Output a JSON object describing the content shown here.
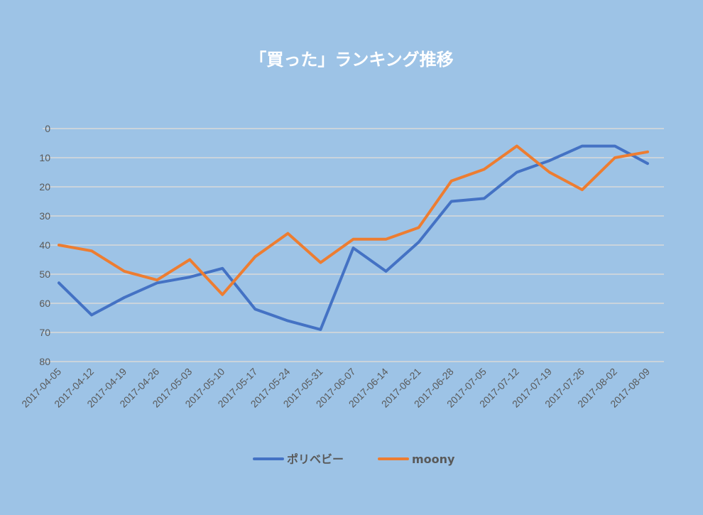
{
  "chart_data": {
    "type": "line",
    "title": "「買った」ランキング推移",
    "xlabel": "",
    "ylabel": "",
    "ylim": [
      0,
      80
    ],
    "y_reversed": true,
    "y_ticks": [
      0,
      10,
      20,
      30,
      40,
      50,
      60,
      70,
      80
    ],
    "grid": true,
    "legend_position": "bottom",
    "categories": [
      "2017-04-05",
      "2017-04-12",
      "2017-04-19",
      "2017-04-26",
      "2017-05-03",
      "2017-05-10",
      "2017-05-17",
      "2017-05-24",
      "2017-05-31",
      "2017-06-07",
      "2017-06-14",
      "2017-06-21",
      "2017-06-28",
      "2017-07-05",
      "2017-07-12",
      "2017-07-19",
      "2017-07-26",
      "2017-08-02",
      "2017-08-09"
    ],
    "series": [
      {
        "name": "ポリベビー",
        "color": "#4472c4",
        "values": [
          53,
          64,
          58,
          53,
          51,
          48,
          62,
          66,
          69,
          41,
          49,
          39,
          25,
          24,
          15,
          11,
          6,
          6,
          12
        ]
      },
      {
        "name": "moony",
        "color": "#ed7d31",
        "values": [
          40,
          42,
          49,
          52,
          45,
          57,
          44,
          36,
          46,
          38,
          38,
          34,
          18,
          14,
          6,
          15,
          21,
          10,
          8
        ]
      }
    ],
    "colors": {
      "background": "#9dc3e6",
      "grid": "#d9d9d9",
      "text": "#595959"
    }
  }
}
